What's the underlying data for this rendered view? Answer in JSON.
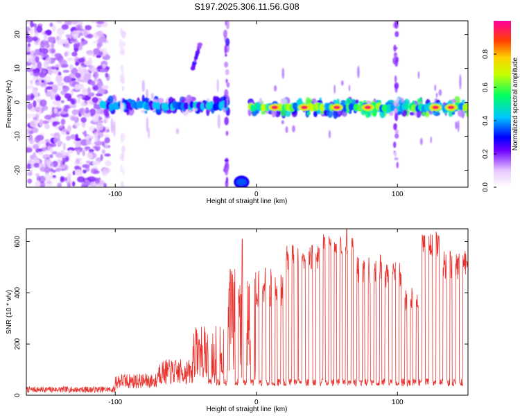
{
  "title": "S197.2025.306.11.56.G08",
  "colors": {
    "snr_line": "#e8322d",
    "signal_core": "#ff2a00",
    "background": "#ffffff"
  },
  "chart_data": [
    {
      "type": "heatmap",
      "name": "spectrogram",
      "xlabel": "Height of straight line (km)",
      "ylabel": "Frequency (Hz)",
      "xlim": [
        -163,
        150
      ],
      "ylim": [
        -25,
        24
      ],
      "xticks": [
        -100,
        0,
        100
      ],
      "xtick_labels": [
        "-100",
        "0",
        "100"
      ],
      "yticks": [
        -20,
        -10,
        0,
        10,
        20
      ],
      "ytick_labels": [
        "-20",
        "-10",
        "0",
        "10",
        "20"
      ],
      "colorbar": {
        "label": "Normalized spectral amplitude",
        "range": [
          0,
          1
        ],
        "ticks": [
          0.0,
          0.2,
          0.4,
          0.6,
          0.8
        ],
        "tick_labels": [
          "0.0",
          "0.2",
          "0.4",
          "0.6",
          "0.8"
        ]
      },
      "features": [
        {
          "kind": "noise",
          "x_range": [
            -163,
            -105
          ],
          "f_range": [
            -25,
            24
          ],
          "amplitude": 0.1
        },
        {
          "kind": "carrier",
          "x_range": [
            -110,
            -20
          ],
          "f_center": -1,
          "f_width": 2.5,
          "amplitude": 0.4
        },
        {
          "kind": "carrier",
          "x_range": [
            -5,
            150
          ],
          "f_center": -1.5,
          "f_width": 2.5,
          "amplitude": 0.6
        },
        {
          "kind": "hot_spots",
          "x": [
            13,
            34,
            57,
            79,
            127,
            138
          ],
          "f_center": -1.5,
          "amplitude": 0.95
        },
        {
          "kind": "vertical_streak",
          "x": -95,
          "amplitude": 0.05
        },
        {
          "kind": "vertical_streak",
          "x": -21,
          "amplitude": 0.15
        },
        {
          "kind": "vertical_streak",
          "x": 99,
          "amplitude": 0.12
        },
        {
          "kind": "strong_patch",
          "x_range": [
            -16,
            -5
          ],
          "f_range": [
            -25,
            -22
          ],
          "amplitude": 0.35
        },
        {
          "kind": "sloped_streak",
          "x_range": [
            -45,
            -40
          ],
          "f_range": [
            10,
            17
          ],
          "amplitude": 0.2
        }
      ]
    },
    {
      "type": "line",
      "name": "snr",
      "xlabel": "Height of straight line (km)",
      "ylabel": "SNR (10 * v/v)",
      "xlim": [
        -163,
        150
      ],
      "ylim": [
        0,
        650
      ],
      "xticks": [
        -100,
        0,
        100
      ],
      "xtick_labels": [
        "-100",
        "0",
        "100"
      ],
      "yticks": [
        0,
        200,
        400,
        600
      ],
      "ytick_labels": [
        "0",
        "200",
        "400",
        "600"
      ],
      "segments": [
        {
          "x_range": [
            -163,
            -100
          ],
          "snr_level": 22,
          "noise": 12
        },
        {
          "x_range": [
            -100,
            -70
          ],
          "snr_level": 55,
          "noise": 30
        },
        {
          "x_range": [
            -70,
            -45
          ],
          "snr_level": 90,
          "noise": 50
        },
        {
          "x_range": [
            -45,
            -20
          ],
          "snr_level": 170,
          "noise": 100
        },
        {
          "x_range": [
            -20,
            0
          ],
          "snr_level": 330,
          "noise": 180
        },
        {
          "x_range": [
            0,
            20
          ],
          "snr_level": 420,
          "noise": 80
        },
        {
          "x_range": [
            20,
            45
          ],
          "snr_level": 540,
          "noise": 50
        },
        {
          "x_range": [
            45,
            70
          ],
          "snr_level": 590,
          "noise": 40
        },
        {
          "x_range": [
            70,
            90
          ],
          "snr_level": 490,
          "noise": 60
        },
        {
          "x_range": [
            90,
            105
          ],
          "snr_level": 470,
          "noise": 50
        },
        {
          "x_range": [
            105,
            115
          ],
          "snr_level": 380,
          "noise": 50
        },
        {
          "x_range": [
            115,
            130
          ],
          "snr_level": 590,
          "noise": 50
        },
        {
          "x_range": [
            130,
            150
          ],
          "snr_level": 510,
          "noise": 60
        }
      ],
      "dropout_level": 50,
      "dropouts_x": [
        -33,
        -27,
        -22,
        -14,
        -8,
        -3,
        3,
        8,
        12,
        16,
        20,
        24,
        28,
        31,
        36,
        41,
        46,
        50,
        54,
        58,
        62,
        66,
        70,
        74,
        78,
        82,
        86,
        90,
        95,
        100,
        104,
        108,
        112,
        116,
        121,
        126,
        131,
        136,
        140,
        145
      ],
      "spikes": [
        {
          "x": -10,
          "y": 610
        },
        {
          "x": 64,
          "y": 648
        }
      ]
    }
  ]
}
